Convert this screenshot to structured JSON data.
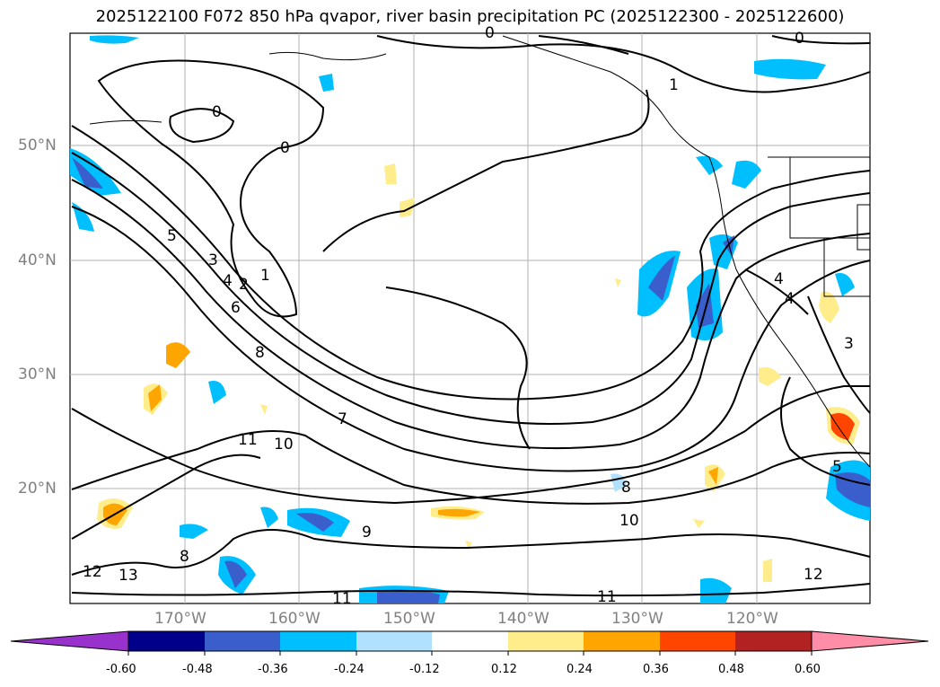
{
  "title": "2025122100 F072 850 hPa qvapor, river basin precipitation PC (2025122300 - 2025122600)",
  "map": {
    "projection": "equirectangular",
    "lat_labels": [
      "50°N",
      "40°N",
      "30°N",
      "20°N"
    ],
    "lon_labels": [
      "170°W",
      "160°W",
      "150°W",
      "140°W",
      "130°W",
      "120°W"
    ],
    "contour_labels": [
      "0",
      "0",
      "0",
      "0",
      "1",
      "1",
      "2",
      "3",
      "4",
      "5",
      "6",
      "7",
      "8",
      "8",
      "9",
      "10",
      "10",
      "11",
      "11",
      "11",
      "12",
      "12",
      "13",
      "4",
      "4",
      "3",
      "5",
      "8"
    ],
    "gridlines": true,
    "coastline_color": "#000000"
  },
  "colorbar": {
    "tick_labels": [
      "-0.60",
      "-0.48",
      "-0.36",
      "-0.24",
      "-0.12",
      "0.12",
      "0.24",
      "0.36",
      "0.48",
      "0.60"
    ],
    "colors": [
      "#9932CC",
      "#00008B",
      "#3A5FCD",
      "#00BFFF",
      "#B0E2FF",
      "#FFFFFF",
      "#FFEC8B",
      "#FFA500",
      "#FF4500",
      "#B22222",
      "#FF8DA8"
    ],
    "extend": "both"
  }
}
